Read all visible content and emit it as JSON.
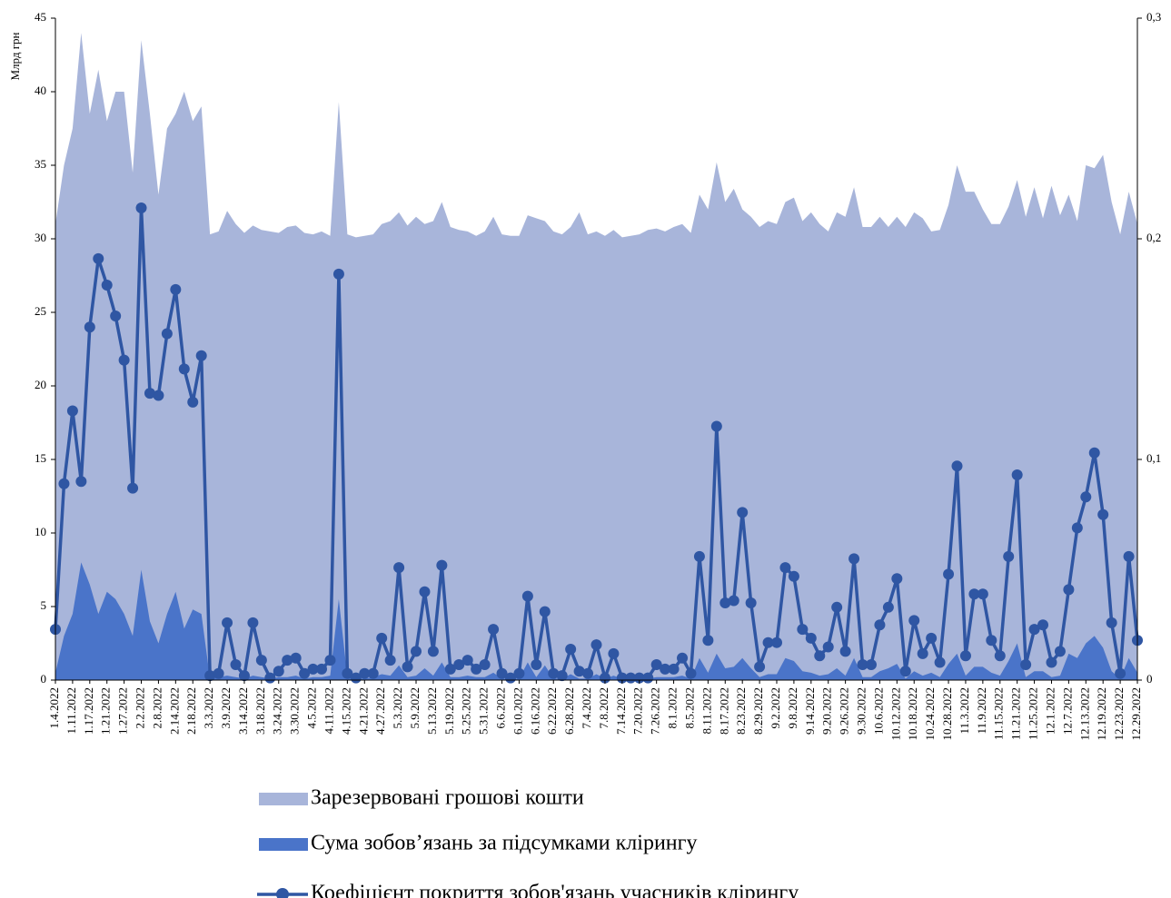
{
  "chart_data": {
    "type": "combo",
    "y_axis_label": "Млрд грн",
    "categories": [
      "1.4.2022",
      null,
      "1.11.2022",
      null,
      "1.17.2022",
      null,
      "1.21.2022",
      null,
      "1.27.2022",
      null,
      "2.2.2022",
      null,
      "2.8.2022",
      null,
      "2.14.2022",
      null,
      "2.18.2022",
      null,
      "3.3.2022",
      null,
      "3.9.2022",
      null,
      "3.14.2022",
      null,
      "3.18.2022",
      null,
      "3.24.2022",
      null,
      "3.30.2022",
      null,
      "4.5.2022",
      null,
      "4.11.2022",
      null,
      "4.15.2022",
      null,
      "4.21.2022",
      null,
      "4.27.2022",
      null,
      "5.3.2022",
      null,
      "5.9.2022",
      null,
      "5.13.2022",
      null,
      "5.19.2022",
      null,
      "5.25.2022",
      null,
      "5.31.2022",
      null,
      "6.6.2022",
      null,
      "6.10.2022",
      null,
      "6.16.2022",
      null,
      "6.22.2022",
      null,
      "6.28.2022",
      null,
      "7.4.2022",
      null,
      "7.8.2022",
      null,
      "7.14.2022",
      null,
      "7.20.2022",
      null,
      "7.26.2022",
      null,
      "8.1.2022",
      null,
      "8.5.2022",
      null,
      "8.11.2022",
      null,
      "8.17.2022",
      null,
      "8.23.2022",
      null,
      "8.29.2022",
      null,
      "9.2.2022",
      null,
      "9.8.2022",
      null,
      "9.14.2022",
      null,
      "9.20.2022",
      null,
      "9.26.2022",
      null,
      "9.30.2022",
      null,
      "10.6.2022",
      null,
      "10.12.2022",
      null,
      "10.18.2022",
      null,
      "10.24.2022",
      null,
      "10.28.2022",
      null,
      "11.3.2022",
      null,
      "11.9.2022",
      null,
      "11.15.2022",
      null,
      "11.21.2022",
      null,
      "11.25.2022",
      null,
      "12.1.2022",
      null,
      "12.7.2022",
      null,
      "12.13.2022",
      null,
      "12.19.2022",
      null,
      "12.23.2022",
      null,
      "12.29.2022"
    ],
    "series": [
      {
        "name": "Зарезервовані грошові кошти",
        "type": "area",
        "color": "#a8b5da",
        "values": [
          31,
          35,
          37.5,
          44,
          38.5,
          41.5,
          38,
          40,
          40,
          34.5,
          43.5,
          38.5,
          33,
          37.5,
          38.5,
          40,
          38,
          39,
          30.3,
          30.5,
          31.9,
          31,
          30.4,
          30.9,
          30.6,
          30.5,
          30.4,
          30.8,
          30.9,
          30.4,
          30.3,
          30.5,
          30.2,
          39.3,
          30.3,
          30.1,
          30.2,
          30.3,
          31,
          31.2,
          31.8,
          30.9,
          31.5,
          31,
          31.2,
          32.5,
          30.8,
          30.6,
          30.5,
          30.2,
          30.5,
          31.5,
          30.3,
          30.2,
          30.2,
          31.6,
          31.4,
          31.2,
          30.5,
          30.3,
          30.8,
          31.8,
          30.3,
          30.5,
          30.2,
          30.6,
          30.1,
          30.2,
          30.3,
          30.6,
          30.7,
          30.5,
          30.8,
          31,
          30.4,
          33,
          32,
          35.2,
          32.5,
          33.4,
          32,
          31.5,
          30.8,
          31.2,
          31,
          32.5,
          32.8,
          31.2,
          31.8,
          31,
          30.5,
          31.8,
          31.5,
          33.5,
          30.8,
          30.8,
          31.5,
          30.8,
          31.5,
          30.8,
          31.8,
          31.4,
          30.5,
          30.6,
          32.3,
          35,
          33.2,
          33.2,
          32,
          31,
          31,
          32.2,
          34,
          31.5,
          33.5,
          31.4,
          33.6,
          31.6,
          33,
          31.2,
          35,
          34.8,
          35.7,
          32.5,
          30.3,
          33.2,
          31
        ]
      },
      {
        "name": "Сума зобов’язань за підсумками клірингу",
        "type": "area",
        "color": "#4a74c9",
        "values": [
          0.5,
          3,
          4.5,
          8,
          6.5,
          4.5,
          6,
          5.5,
          4.5,
          3,
          7.5,
          4,
          2.5,
          4.5,
          6,
          3.5,
          4.8,
          4.5,
          0.1,
          0.2,
          0.3,
          0.2,
          0.1,
          0.3,
          0.2,
          0.1,
          0.2,
          0.2,
          0.3,
          0.1,
          0.2,
          0.2,
          0.3,
          5.5,
          0.2,
          0.1,
          0.1,
          0.2,
          0.4,
          0.3,
          1,
          0.2,
          0.3,
          0.8,
          0.3,
          1.2,
          0.2,
          0.2,
          0.3,
          0.2,
          0.2,
          0.5,
          0.1,
          0.1,
          0.1,
          1.2,
          0.2,
          1,
          0.1,
          0.1,
          0.4,
          0.1,
          0.1,
          0.4,
          0.1,
          0.3,
          0.1,
          0.1,
          0.1,
          0.1,
          0.2,
          0.2,
          0.2,
          0.3,
          0.1,
          1.5,
          0.5,
          1.8,
          0.8,
          0.9,
          1.5,
          0.8,
          0.2,
          0.4,
          0.4,
          1.5,
          1.3,
          0.6,
          0.5,
          0.3,
          0.4,
          0.8,
          0.3,
          1.5,
          0.2,
          0.2,
          0.6,
          0.8,
          1.1,
          0.1,
          0.6,
          0.3,
          0.5,
          0.2,
          1.1,
          1.8,
          0.3,
          0.9,
          0.9,
          0.5,
          0.3,
          1.3,
          2.5,
          0.2,
          0.6,
          0.6,
          0.2,
          0.3,
          1.8,
          1.5,
          2.5,
          3,
          2.2,
          0.6,
          0.1,
          1.5,
          0.5
        ]
      },
      {
        "name": "Коефіцієнт покриття зобов'язань учасників клірингу",
        "type": "line",
        "axis": "y2",
        "color": "#2f56a3",
        "values": [
          0.023,
          0.089,
          0.122,
          0.09,
          0.16,
          0.191,
          0.179,
          0.165,
          0.145,
          0.087,
          0.214,
          0.13,
          0.129,
          0.157,
          0.177,
          0.141,
          0.126,
          0.147,
          0.002,
          0.003,
          0.026,
          0.007,
          0.002,
          0.026,
          0.009,
          0.001,
          0.004,
          0.009,
          0.01,
          0.003,
          0.005,
          0.005,
          0.009,
          0.184,
          0.003,
          0.001,
          0.003,
          0.003,
          0.019,
          0.009,
          0.051,
          0.006,
          0.013,
          0.04,
          0.013,
          0.052,
          0.005,
          0.007,
          0.009,
          0.005,
          0.007,
          0.023,
          0.003,
          0.001,
          0.003,
          0.038,
          0.007,
          0.031,
          0.003,
          0.002,
          0.014,
          0.004,
          0.003,
          0.016,
          0.001,
          0.012,
          0.001,
          0.001,
          0.001,
          0.001,
          0.007,
          0.005,
          0.005,
          0.01,
          0.003,
          0.056,
          0.018,
          0.115,
          0.035,
          0.036,
          0.076,
          0.035,
          0.006,
          0.017,
          0.017,
          0.051,
          0.047,
          0.023,
          0.019,
          0.011,
          0.015,
          0.033,
          0.013,
          0.055,
          0.007,
          0.007,
          0.025,
          0.033,
          0.046,
          0.004,
          0.027,
          0.012,
          0.019,
          0.008,
          0.048,
          0.097,
          0.011,
          0.039,
          0.039,
          0.018,
          0.011,
          0.056,
          0.093,
          0.007,
          0.023,
          0.025,
          0.008,
          0.013,
          0.041,
          0.069,
          0.083,
          0.103,
          0.075,
          0.026,
          0.003,
          0.056,
          0.018
        ]
      }
    ],
    "ylim": [
      0,
      45
    ],
    "yticks": [
      0,
      5,
      10,
      15,
      20,
      25,
      30,
      35,
      40,
      45
    ],
    "y2lim": [
      0,
      0.3
    ],
    "y2ticks": [
      0,
      {
        "value": 0.1,
        "label": "0,1"
      },
      {
        "value": 0.2,
        "label": "0,2"
      },
      {
        "value": 0.3,
        "label": "0,3"
      }
    ],
    "grid": false,
    "legend": "bottom"
  }
}
